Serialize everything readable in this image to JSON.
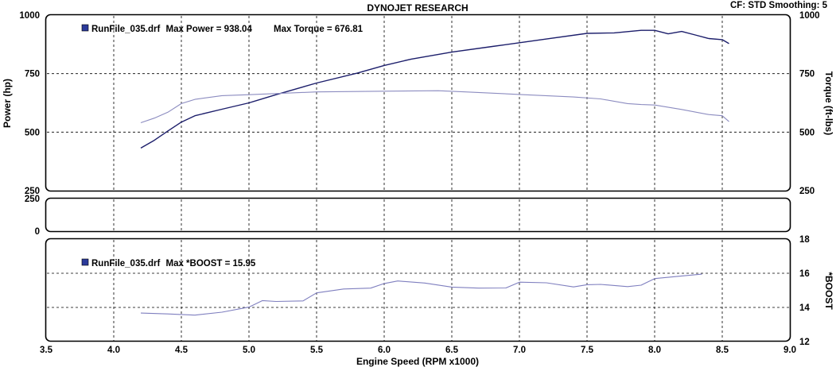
{
  "header": {
    "title": "DYNOJET RESEARCH",
    "settings": "CF: STD  Smoothing: 5"
  },
  "colors": {
    "power": "#1c1e6b",
    "torque": "#8c8cc0",
    "boost": "#7f7fbf",
    "legend_marker": "#2b3a9a",
    "frame": "#000000",
    "grid": "#000000"
  },
  "chart_data": [
    {
      "id": "power-torque",
      "type": "line",
      "legend": {
        "file": "RunFile_035.drf",
        "text1": "Max Power = 938.04",
        "text2": "Max Torque = 676.81",
        "placement": "top-left"
      },
      "ylabel_left": "Power (hp)",
      "ylabel_right": "Torque (ft-lbs)",
      "ylim": [
        250,
        1000
      ],
      "yticks": [
        250,
        500,
        750,
        1000
      ],
      "xlim": [
        3.5,
        9.0
      ],
      "grid": true,
      "series": [
        {
          "key": "power",
          "x": [
            4.2,
            4.3,
            4.4,
            4.5,
            4.6,
            4.8,
            5.0,
            5.2,
            5.5,
            5.8,
            6.0,
            6.2,
            6.5,
            6.8,
            7.0,
            7.2,
            7.5,
            7.7,
            7.9,
            8.0,
            8.1,
            8.2,
            8.3,
            8.4,
            8.5,
            8.55
          ],
          "y": [
            432,
            465,
            505,
            543,
            570,
            598,
            625,
            660,
            710,
            752,
            785,
            812,
            842,
            866,
            882,
            898,
            922,
            924,
            935,
            935,
            920,
            930,
            915,
            900,
            895,
            878
          ]
        },
        {
          "key": "torque",
          "x": [
            4.2,
            4.3,
            4.4,
            4.5,
            4.6,
            4.8,
            5.0,
            5.5,
            6.0,
            6.4,
            6.6,
            7.0,
            7.4,
            7.6,
            7.8,
            7.9,
            8.0,
            8.2,
            8.4,
            8.5,
            8.55
          ],
          "y": [
            540,
            560,
            585,
            622,
            640,
            656,
            660,
            672,
            675,
            677,
            672,
            661,
            650,
            642,
            622,
            618,
            616,
            597,
            575,
            570,
            545
          ]
        }
      ]
    },
    {
      "id": "middle",
      "type": "line",
      "ylim": [
        0,
        250
      ],
      "yticks": [
        0,
        250
      ],
      "grid": true,
      "series": []
    },
    {
      "id": "boost",
      "type": "line",
      "legend": {
        "file": "RunFile_035.drf",
        "text1": "Max *BOOST = 15.95",
        "placement": "top-left"
      },
      "ylabel_right": "*BOOST",
      "ylim": [
        12,
        18
      ],
      "yticks": [
        12,
        14,
        16,
        18
      ],
      "xlim": [
        3.5,
        9.0
      ],
      "grid": true,
      "series": [
        {
          "key": "boost",
          "x": [
            4.2,
            4.4,
            4.6,
            4.8,
            5.0,
            5.1,
            5.2,
            5.4,
            5.5,
            5.7,
            5.9,
            6.0,
            6.1,
            6.3,
            6.5,
            6.7,
            6.9,
            7.0,
            7.2,
            7.4,
            7.5,
            7.6,
            7.8,
            7.9,
            8.0,
            8.2,
            8.35
          ],
          "y": [
            13.67,
            13.62,
            13.55,
            13.72,
            14.02,
            14.4,
            14.35,
            14.38,
            14.85,
            15.08,
            15.13,
            15.4,
            15.55,
            15.43,
            15.19,
            15.13,
            15.14,
            15.48,
            15.44,
            15.2,
            15.33,
            15.35,
            15.22,
            15.3,
            15.69,
            15.84,
            15.95
          ]
        }
      ]
    }
  ],
  "xaxis": {
    "label": "Engine Speed (RPM x1000)",
    "ticks": [
      "3.5",
      "4.0",
      "4.5",
      "5.0",
      "5.5",
      "6.0",
      "6.5",
      "7.0",
      "7.5",
      "8.0",
      "8.5",
      "9.0"
    ],
    "values": [
      3.5,
      4.0,
      4.5,
      5.0,
      5.5,
      6.0,
      6.5,
      7.0,
      7.5,
      8.0,
      8.5,
      9.0
    ]
  }
}
